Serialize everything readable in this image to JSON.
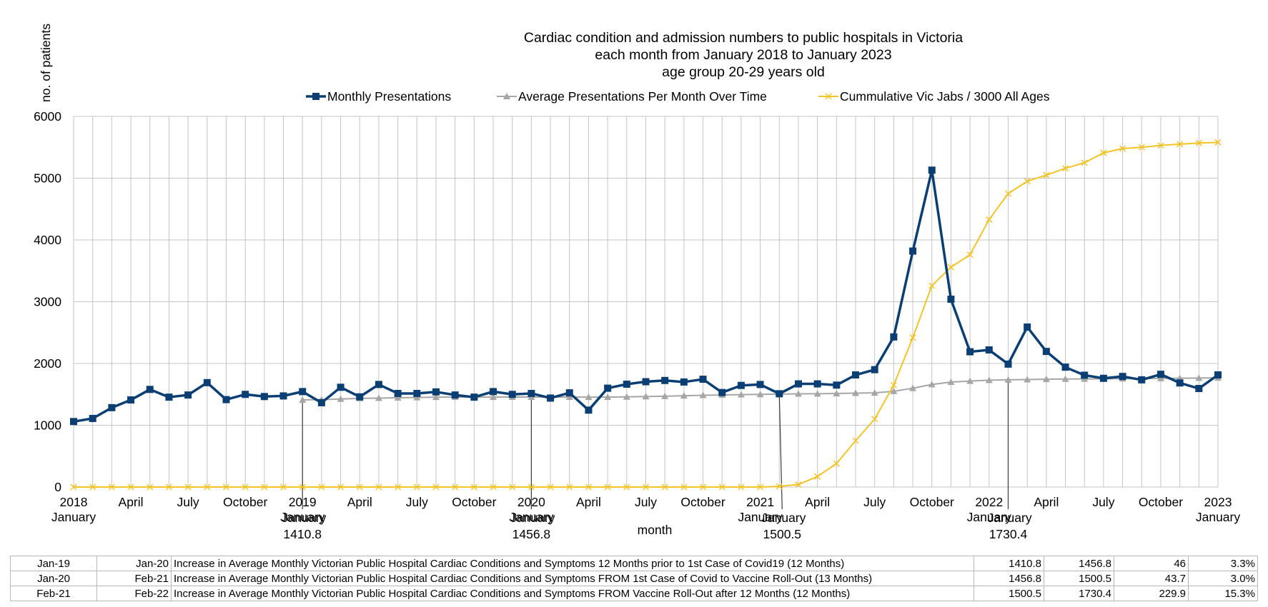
{
  "chart_data": {
    "type": "line",
    "title": [
      "Cardiac condition and admission numbers to public hospitals in Victoria",
      "each month from January 2018 to January 2023",
      "age group 20-29 years old"
    ],
    "ylabel": "no. of patients",
    "xlabel": "month",
    "ylim": [
      0,
      6000
    ],
    "y_ticks": [
      0,
      1000,
      2000,
      3000,
      4000,
      5000,
      6000
    ],
    "grid": true,
    "legend_position": "top",
    "x_tick_labels": [
      {
        "index": 0,
        "line1": "2018",
        "line2": "January"
      },
      {
        "index": 3,
        "line1": "April",
        "line2": ""
      },
      {
        "index": 6,
        "line1": "July",
        "line2": ""
      },
      {
        "index": 9,
        "line1": "October",
        "line2": ""
      },
      {
        "index": 12,
        "line1": "2019",
        "line2": "January"
      },
      {
        "index": 15,
        "line1": "April",
        "line2": ""
      },
      {
        "index": 18,
        "line1": "July",
        "line2": ""
      },
      {
        "index": 21,
        "line1": "October",
        "line2": ""
      },
      {
        "index": 24,
        "line1": "2020",
        "line2": "January"
      },
      {
        "index": 27,
        "line1": "April",
        "line2": ""
      },
      {
        "index": 30,
        "line1": "July",
        "line2": ""
      },
      {
        "index": 33,
        "line1": "October",
        "line2": ""
      },
      {
        "index": 36,
        "line1": "2021",
        "line2": "January"
      },
      {
        "index": 39,
        "line1": "April",
        "line2": ""
      },
      {
        "index": 42,
        "line1": "July",
        "line2": ""
      },
      {
        "index": 45,
        "line1": "October",
        "line2": ""
      },
      {
        "index": 48,
        "line1": "2022",
        "line2": "January"
      },
      {
        "index": 51,
        "line1": "April",
        "line2": ""
      },
      {
        "index": 54,
        "line1": "July",
        "line2": ""
      },
      {
        "index": 57,
        "line1": "October",
        "line2": ""
      },
      {
        "index": 60,
        "line1": "2023",
        "line2": "January"
      }
    ],
    "series": [
      {
        "name": "Monthly Presentations",
        "color": "#0b3f73",
        "marker": "square",
        "values": [
          1060,
          1110,
          1285,
          1410,
          1580,
          1455,
          1490,
          1690,
          1415,
          1500,
          1465,
          1475,
          1545,
          1365,
          1615,
          1460,
          1660,
          1515,
          1515,
          1540,
          1490,
          1455,
          1545,
          1500,
          1515,
          1440,
          1525,
          1245,
          1600,
          1665,
          1705,
          1725,
          1700,
          1745,
          1530,
          1645,
          1660,
          1510,
          1670,
          1670,
          1650,
          1815,
          1900,
          2430,
          3820,
          5130,
          3040,
          2190,
          2220,
          1990,
          2590,
          2195,
          1940,
          1810,
          1760,
          1790,
          1735,
          1825,
          1685,
          1595,
          1815
        ]
      },
      {
        "name": "Average Presentations Per Month Over Time",
        "color": "#a6a6a6",
        "marker": "triangle",
        "start_index": 12,
        "values": [
          1410.8,
          1415,
          1425,
          1435,
          1440,
          1445,
          1450,
          1455,
          1455,
          1455,
          1455,
          1456,
          1456.8,
          1456,
          1456,
          1455,
          1455,
          1460,
          1465,
          1470,
          1478,
          1485,
          1490,
          1495,
          1500.5,
          1505,
          1508,
          1510,
          1515,
          1520,
          1525,
          1550,
          1600,
          1660,
          1700,
          1715,
          1730.4,
          1735,
          1740,
          1745,
          1748,
          1750,
          1752,
          1754,
          1756,
          1758,
          1762,
          1765,
          1768
        ]
      },
      {
        "name": "Cummulative Vic Jabs / 3000 All Ages",
        "color": "#f2c428",
        "marker": "x",
        "values": [
          0,
          0,
          0,
          0,
          0,
          0,
          0,
          0,
          0,
          0,
          0,
          0,
          0,
          0,
          0,
          0,
          0,
          0,
          0,
          0,
          0,
          0,
          0,
          0,
          0,
          0,
          0,
          0,
          0,
          0,
          0,
          0,
          0,
          0,
          0,
          0,
          0,
          10,
          40,
          170,
          380,
          750,
          1100,
          1650,
          2420,
          3260,
          3560,
          3760,
          4330,
          4750,
          4950,
          5050,
          5160,
          5250,
          5410,
          5480,
          5500,
          5530,
          5550,
          5570,
          5580
        ]
      }
    ],
    "annotations": [
      {
        "index": 12,
        "label": "1410.8"
      },
      {
        "index": 24,
        "label": "1456.8"
      },
      {
        "index": 37,
        "label": "1500.5"
      },
      {
        "index": 49,
        "label": "1730.4"
      }
    ],
    "annotation_month_labels": [
      {
        "index": 12,
        "label": "January"
      },
      {
        "index": 24,
        "label": "January"
      },
      {
        "index": 37,
        "label": "January"
      },
      {
        "index": 49,
        "label": "January"
      }
    ]
  },
  "table": {
    "rows": [
      [
        "Jan-19",
        "Jan-20",
        "Increase in Average Monthly Victorian Public Hospital Cardiac Conditions and Symptoms  12 Months prior to 1st Case of Covid19  (12 Months)",
        "1410.8",
        "1456.8",
        "46",
        "3.3%"
      ],
      [
        "Jan-20",
        "Feb-21",
        "Increase in Average Monthly Victorian Public Hospital Cardiac Conditions and Symptoms  FROM 1st Case of Covid to Vaccine Roll-Out (13 Months)",
        "1456.8",
        "1500.5",
        "43.7",
        "3.0%"
      ],
      [
        "Feb-21",
        "Feb-22",
        "Increase in Average Monthly Victorian Public Hospital Cardiac Conditions and Symptoms  FROM Vaccine Roll-Out after 12 Months (12 Months)",
        "1500.5",
        "1730.4",
        "229.9",
        "15.3%"
      ]
    ]
  }
}
